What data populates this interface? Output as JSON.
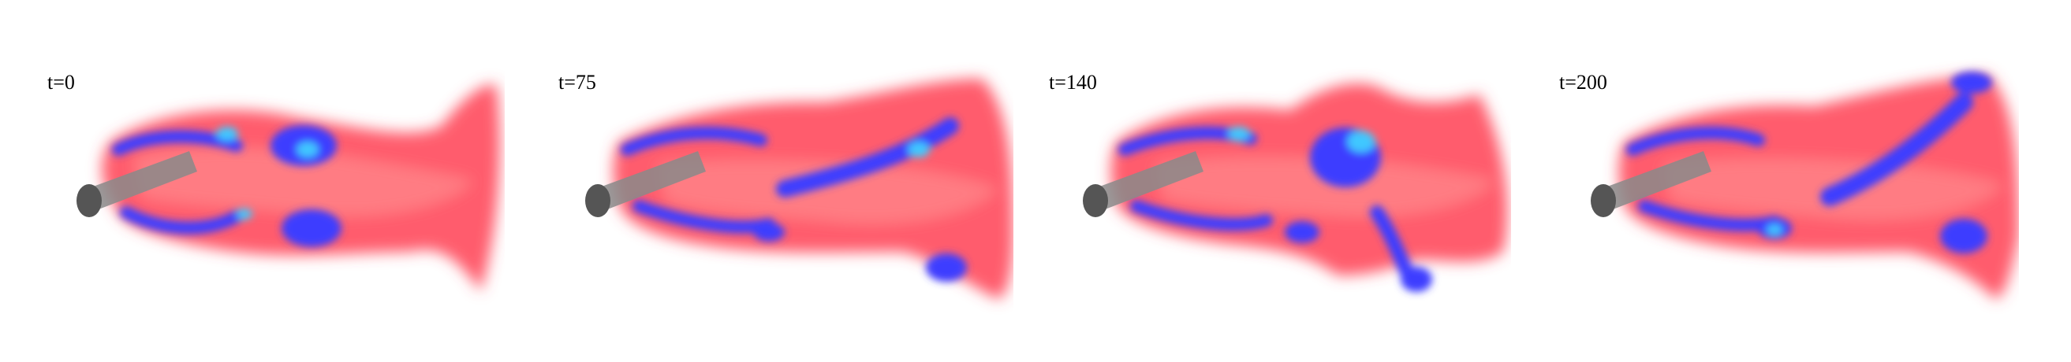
{
  "frames": [
    {
      "label": "t=0"
    },
    {
      "label": "t=75"
    },
    {
      "label": "t=140"
    },
    {
      "label": "t=200"
    }
  ],
  "colors": {
    "background": "#ffffff",
    "plume": "#ff4a5c",
    "plume_light": "#ff8a8f",
    "vortex_core": "#3c3cff",
    "vortex_center": "#3fc8ff",
    "cylinder": "#7a7a7a"
  }
}
